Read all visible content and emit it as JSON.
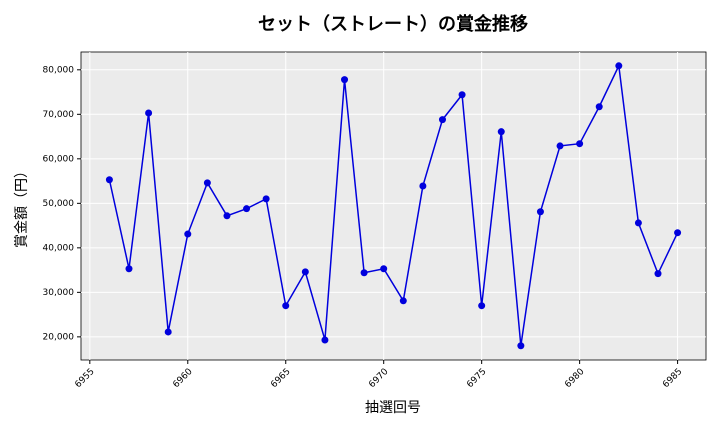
{
  "chart_data": {
    "type": "line",
    "title": "セット（ストレート）の賞金推移",
    "xlabel": "抽選回号",
    "ylabel": "賞金額（円）",
    "x": [
      6956,
      6957,
      6958,
      6959,
      6960,
      6961,
      6962,
      6963,
      6964,
      6965,
      6966,
      6967,
      6968,
      6969,
      6970,
      6971,
      6972,
      6973,
      6974,
      6975,
      6976,
      6977,
      6978,
      6979,
      6980,
      6981,
      6982,
      6983,
      6984,
      6985
    ],
    "values": [
      55300,
      35300,
      70300,
      21100,
      43100,
      54600,
      47200,
      48800,
      51000,
      27000,
      34600,
      19300,
      77800,
      34400,
      35300,
      28100,
      53900,
      68800,
      74400,
      27000,
      66100,
      18000,
      48100,
      62900,
      63400,
      71700,
      80900,
      45600,
      34200,
      43400
    ],
    "color": "#0000dd",
    "xlim": [
      6954.55,
      6986.45
    ],
    "xticks": [
      6955,
      6960,
      6965,
      6970,
      6975,
      6980,
      6985
    ],
    "ylim": [
      14800,
      84000
    ],
    "yticks": [
      {
        "value": 20000,
        "label": "20,000"
      },
      {
        "value": 30000,
        "label": "30,000"
      },
      {
        "value": 40000,
        "label": "40,000"
      },
      {
        "value": 50000,
        "label": "50,000"
      },
      {
        "value": 60000,
        "label": "60,000"
      },
      {
        "value": 70000,
        "label": "70,000"
      },
      {
        "value": 80000,
        "label": "80,000"
      }
    ],
    "grid": true
  }
}
